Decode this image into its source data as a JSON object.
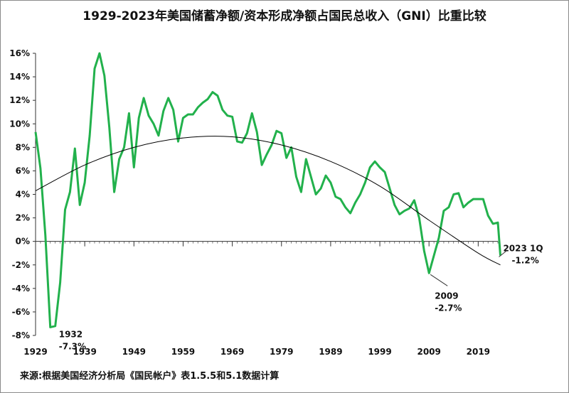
{
  "chart_data": {
    "type": "line",
    "title": "1929-2023年美国储蓄净额/资本形成净额占国民总收入（GNI）比重比较",
    "source": "来源:根据美国经济分析局《国民帐户》表1.5.5和5.1数据计算",
    "xlim": [
      1929,
      2023
    ],
    "ylim": [
      -8,
      16
    ],
    "y_ticks": [
      16,
      14,
      12,
      10,
      8,
      6,
      4,
      2,
      0,
      -2,
      -4,
      -6,
      -8
    ],
    "y_tick_labels": [
      "16%",
      "14%",
      "12%",
      "10%",
      "8%",
      "6%",
      "4%",
      "2%",
      "0%",
      "-2%",
      "-4%",
      "-6%",
      "-8%"
    ],
    "x_tick_labels": [
      "1929",
      "1939",
      "1949",
      "1959",
      "1969",
      "1979",
      "1989",
      "1999",
      "2009",
      "2019"
    ],
    "x_ticks": [
      1929,
      1939,
      1949,
      1959,
      1969,
      1979,
      1989,
      1999,
      2009,
      2019
    ],
    "grid": false,
    "legend": "none",
    "series": [
      {
        "color": "#22b14c",
        "points": [
          [
            1929,
            9.3
          ],
          [
            1930,
            6.2
          ],
          [
            1931,
            0.5
          ],
          [
            1932,
            -7.3
          ],
          [
            1933,
            -7.2
          ],
          [
            1934,
            -3.5
          ],
          [
            1935,
            2.7
          ],
          [
            1936,
            4.2
          ],
          [
            1937,
            7.9
          ],
          [
            1938,
            3.1
          ],
          [
            1939,
            5.0
          ],
          [
            1940,
            9.0
          ],
          [
            1941,
            14.7
          ],
          [
            1942,
            16.0
          ],
          [
            1943,
            14.1
          ],
          [
            1944,
            9.7
          ],
          [
            1945,
            4.2
          ],
          [
            1946,
            7.0
          ],
          [
            1947,
            8.0
          ],
          [
            1948,
            10.9
          ],
          [
            1949,
            6.3
          ],
          [
            1950,
            10.5
          ],
          [
            1951,
            12.2
          ],
          [
            1952,
            10.7
          ],
          [
            1953,
            10.0
          ],
          [
            1954,
            9.0
          ],
          [
            1955,
            11.1
          ],
          [
            1956,
            12.2
          ],
          [
            1957,
            11.2
          ],
          [
            1958,
            8.5
          ],
          [
            1959,
            10.5
          ],
          [
            1960,
            10.8
          ],
          [
            1961,
            10.8
          ],
          [
            1962,
            11.4
          ],
          [
            1963,
            11.8
          ],
          [
            1964,
            12.1
          ],
          [
            1965,
            12.7
          ],
          [
            1966,
            12.4
          ],
          [
            1967,
            11.2
          ],
          [
            1968,
            10.7
          ],
          [
            1969,
            10.6
          ],
          [
            1970,
            8.5
          ],
          [
            1971,
            8.4
          ],
          [
            1972,
            9.2
          ],
          [
            1973,
            10.9
          ],
          [
            1974,
            9.3
          ],
          [
            1975,
            6.5
          ],
          [
            1976,
            7.4
          ],
          [
            1977,
            8.2
          ],
          [
            1978,
            9.4
          ],
          [
            1979,
            9.2
          ],
          [
            1980,
            7.1
          ],
          [
            1981,
            8.0
          ],
          [
            1982,
            5.5
          ],
          [
            1983,
            4.2
          ],
          [
            1984,
            7.0
          ],
          [
            1985,
            5.5
          ],
          [
            1986,
            4.0
          ],
          [
            1987,
            4.5
          ],
          [
            1988,
            5.6
          ],
          [
            1989,
            5.0
          ],
          [
            1990,
            3.8
          ],
          [
            1991,
            3.6
          ],
          [
            1992,
            2.9
          ],
          [
            1993,
            2.4
          ],
          [
            1994,
            3.3
          ],
          [
            1995,
            4.0
          ],
          [
            1996,
            5.0
          ],
          [
            1997,
            6.3
          ],
          [
            1998,
            6.8
          ],
          [
            1999,
            6.3
          ],
          [
            2000,
            5.9
          ],
          [
            2001,
            4.5
          ],
          [
            2002,
            3.1
          ],
          [
            2003,
            2.3
          ],
          [
            2004,
            2.6
          ],
          [
            2005,
            2.8
          ],
          [
            2006,
            3.5
          ],
          [
            2007,
            2.0
          ],
          [
            2008,
            -0.8
          ],
          [
            2009,
            -2.7
          ],
          [
            2010,
            -1.2
          ],
          [
            2011,
            0.3
          ],
          [
            2012,
            2.6
          ],
          [
            2013,
            2.9
          ],
          [
            2014,
            4.0
          ],
          [
            2015,
            4.1
          ],
          [
            2016,
            2.9
          ],
          [
            2017,
            3.3
          ],
          [
            2018,
            3.6
          ],
          [
            2019,
            3.6
          ],
          [
            2020,
            3.6
          ],
          [
            2021,
            2.2
          ],
          [
            2022,
            1.5
          ],
          [
            2023,
            1.6
          ],
          [
            2023.5,
            -1.2
          ]
        ]
      },
      {
        "color": "#000000",
        "trendline": "polynomial",
        "points": [
          [
            1929,
            4.3
          ],
          [
            1939,
            6.5
          ],
          [
            1949,
            8.0
          ],
          [
            1959,
            8.8
          ],
          [
            1969,
            8.9
          ],
          [
            1979,
            8.2
          ],
          [
            1989,
            6.8
          ],
          [
            1999,
            4.7
          ],
          [
            2009,
            1.8
          ],
          [
            2019,
            -1.0
          ],
          [
            2023.5,
            -2.0
          ]
        ]
      }
    ],
    "annotations": [
      {
        "label": "1932",
        "value_label": "-7.3%",
        "x": 1932,
        "y": -7.3
      },
      {
        "label": "2009",
        "value_label": "-2.7%",
        "x": 2009,
        "y": -2.7
      },
      {
        "label": "2023 1Q",
        "value_label": "-1.2%",
        "x": 2023.5,
        "y": -1.2
      }
    ]
  }
}
